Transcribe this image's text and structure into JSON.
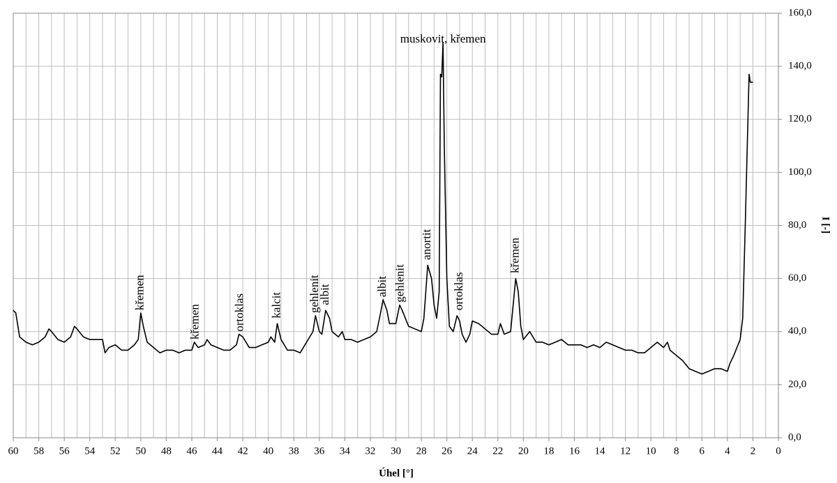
{
  "chart_data": {
    "type": "line",
    "x_label": "Úhel [°]",
    "y_label": "I [-]",
    "xlim": [
      60,
      0
    ],
    "xticks": [
      60,
      58,
      56,
      54,
      52,
      50,
      48,
      46,
      44,
      42,
      40,
      38,
      36,
      34,
      32,
      30,
      28,
      26,
      24,
      22,
      20,
      18,
      16,
      14,
      12,
      10,
      8,
      6,
      4,
      2,
      0
    ],
    "ylim": [
      0,
      160
    ],
    "yticks": [
      {
        "value": 0,
        "label": "0,0"
      },
      {
        "value": 20,
        "label": "20,0"
      },
      {
        "value": 40,
        "label": "40,0"
      },
      {
        "value": 60,
        "label": "60,0"
      },
      {
        "value": 80,
        "label": "80,0"
      },
      {
        "value": 100,
        "label": "100,0"
      },
      {
        "value": 120,
        "label": "120,0"
      },
      {
        "value": 140,
        "label": "140,0"
      },
      {
        "value": 160,
        "label": "160,0"
      }
    ],
    "grid": true,
    "y_axis_side": "right",
    "color": "#000000",
    "x": [
      60,
      59.8,
      59.5,
      59,
      58.5,
      58,
      57.5,
      57.2,
      57,
      56.5,
      56,
      55.5,
      55.2,
      55,
      54.5,
      54,
      53.5,
      53,
      52.8,
      52.5,
      52,
      51.5,
      51,
      50.5,
      50.2,
      50,
      49.8,
      49.5,
      49,
      48.5,
      48,
      47.5,
      47,
      46.5,
      46,
      45.8,
      45.5,
      45,
      44.8,
      44.5,
      44,
      43.5,
      43,
      42.5,
      42.3,
      42,
      41.5,
      41,
      40.5,
      40,
      39.8,
      39.5,
      39.3,
      39,
      38.5,
      38,
      37.5,
      37,
      36.5,
      36.3,
      36,
      35.8,
      35.5,
      35.2,
      35,
      34.5,
      34.2,
      34,
      33.5,
      33,
      32.5,
      32,
      31.5,
      31.2,
      31,
      30.7,
      30.5,
      30,
      29.7,
      29.5,
      29,
      28.5,
      28,
      27.8,
      27.5,
      27.2,
      27,
      26.8,
      26.6,
      26.5,
      26.4,
      26.3,
      26.2,
      26,
      25.8,
      25.5,
      25.2,
      25,
      24.8,
      24.5,
      24.2,
      24,
      23.5,
      23,
      22.5,
      22,
      21.8,
      21.5,
      21,
      20.8,
      20.6,
      20.4,
      20.2,
      20,
      19.5,
      19,
      18.5,
      18,
      17.5,
      17,
      16.5,
      16,
      15.5,
      15,
      14.5,
      14,
      13.5,
      13,
      12.5,
      12,
      11.5,
      11,
      10.5,
      10,
      9.5,
      9,
      8.7,
      8.5,
      8,
      7.5,
      7,
      6.5,
      6,
      5.5,
      5,
      4.5,
      4,
      3.8,
      3.5,
      3,
      2.8,
      2.6,
      2.4,
      2.3,
      2.2,
      2
    ],
    "values": [
      48,
      47,
      38,
      36,
      35,
      36,
      38,
      41,
      40,
      37,
      36,
      38,
      42,
      41,
      38,
      37,
      37,
      37,
      32,
      34,
      35,
      33,
      33,
      35,
      37,
      47,
      42,
      36,
      34,
      32,
      33,
      33,
      32,
      33,
      33,
      36,
      34,
      35,
      37,
      35,
      34,
      33,
      33,
      35,
      39,
      38,
      34,
      34,
      35,
      36,
      38,
      36,
      43,
      37,
      33,
      33,
      32,
      36,
      40,
      46,
      40,
      39,
      48,
      45,
      40,
      38,
      40,
      37,
      37,
      36,
      37,
      38,
      40,
      47,
      52,
      48,
      43,
      43,
      50,
      48,
      42,
      41,
      40,
      45,
      65,
      60,
      50,
      45,
      55,
      137,
      136,
      149,
      110,
      60,
      42,
      40,
      46,
      44,
      39,
      36,
      39,
      44,
      43,
      41,
      39,
      39,
      43,
      39,
      40,
      50,
      60,
      55,
      42,
      37,
      40,
      36,
      36,
      35,
      36,
      37,
      35,
      35,
      35,
      34,
      35,
      34,
      36,
      35,
      34,
      33,
      33,
      32,
      32,
      34,
      36,
      34,
      36,
      33,
      31,
      29,
      26,
      25,
      24,
      25,
      26,
      26,
      25,
      28,
      31,
      37,
      45,
      80,
      118,
      137,
      134,
      134
    ],
    "annotations": [
      {
        "text": "křemen",
        "x": 50.0,
        "y": 48,
        "rotated": true
      },
      {
        "text": "křemen",
        "x": 45.7,
        "y": 37,
        "rotated": true
      },
      {
        "text": "ortoklas",
        "x": 42.2,
        "y": 40,
        "rotated": true
      },
      {
        "text": "kalcit",
        "x": 39.3,
        "y": 45,
        "rotated": true
      },
      {
        "text": "gehlenit",
        "x": 36.3,
        "y": 47,
        "rotated": true
      },
      {
        "text": "albit",
        "x": 35.5,
        "y": 50,
        "rotated": true
      },
      {
        "text": "albit",
        "x": 31.0,
        "y": 53,
        "rotated": true
      },
      {
        "text": "gehlenit",
        "x": 29.6,
        "y": 51,
        "rotated": true
      },
      {
        "text": "anortit",
        "x": 27.5,
        "y": 67,
        "rotated": true
      },
      {
        "text": "muskovit, křemen",
        "x": 26.3,
        "y": 150,
        "rotated": false
      },
      {
        "text": "ortoklas",
        "x": 25.0,
        "y": 48,
        "rotated": true
      },
      {
        "text": "křemen",
        "x": 20.6,
        "y": 62,
        "rotated": true
      }
    ]
  }
}
